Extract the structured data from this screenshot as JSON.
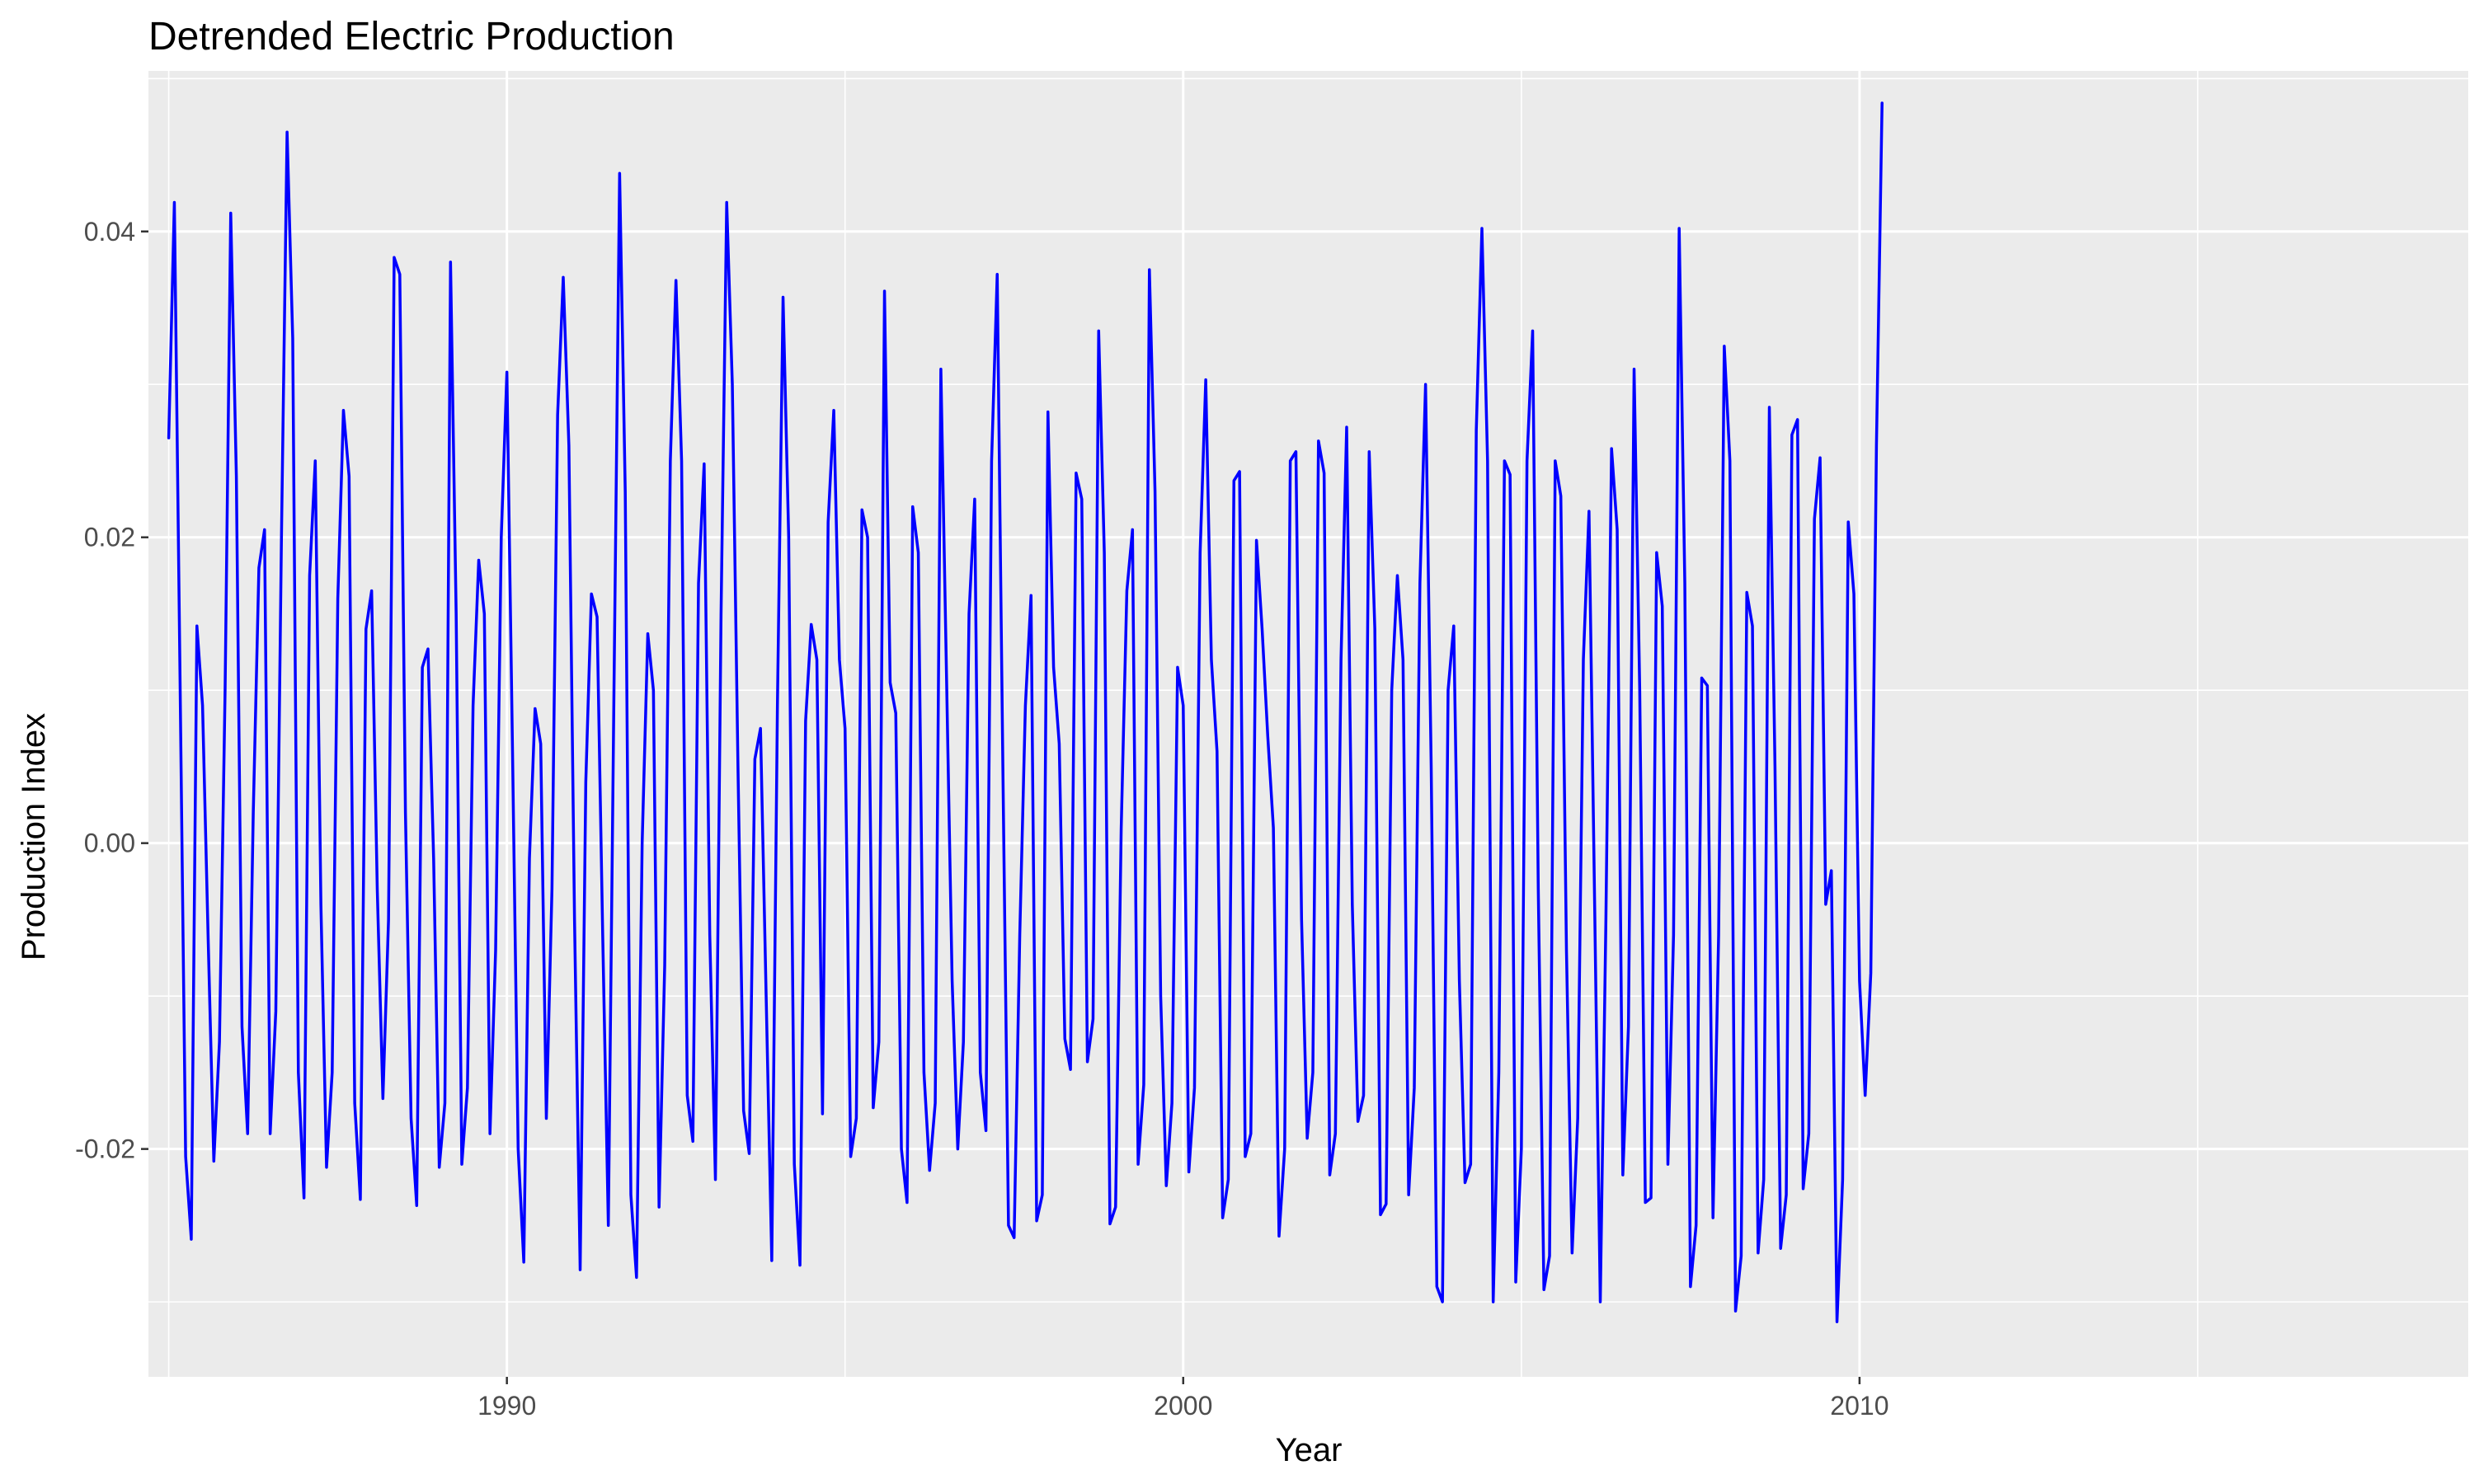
{
  "chart_data": {
    "type": "line",
    "title": "Detrended Electric Production",
    "xlabel": "Year",
    "ylabel": "Production Index",
    "xlim": [
      1984.7,
      2019.0
    ],
    "ylim": [
      -0.0349,
      0.0505
    ],
    "x_ticks": [
      1990,
      2000,
      2010
    ],
    "x_tick_labels": [
      "1990",
      "2000",
      "2010"
    ],
    "y_ticks": [
      -0.02,
      0.0,
      0.02,
      0.04
    ],
    "y_tick_labels": [
      "-0.02",
      "0.00",
      "0.02",
      "0.04"
    ],
    "grid": true,
    "legend": "none",
    "colors": {
      "line": "#0000ff",
      "panel": "#ebebeb",
      "grid": "#ffffff",
      "tick_text": "#4d4d4d"
    },
    "series": [
      {
        "x_start": 1985.0,
        "step": 0.083333,
        "values": [
          0.0265,
          0.0419,
          0.011,
          -0.0205,
          -0.0259,
          0.0142,
          0.009,
          -0.0063,
          -0.0208,
          -0.013,
          0.01,
          0.0412,
          0.024,
          -0.012,
          -0.019,
          0.002,
          0.018,
          0.0205,
          -0.019,
          -0.011,
          0.02,
          0.0465,
          0.033,
          -0.015,
          -0.0232,
          0.0175,
          0.025,
          -0.004,
          -0.0212,
          -0.015,
          0.016,
          0.0283,
          0.024,
          -0.017,
          -0.0233,
          0.014,
          0.0165,
          -0.003,
          -0.0167,
          -0.005,
          0.0383,
          0.0372,
          0.002,
          -0.018,
          -0.0237,
          0.0115,
          0.0127,
          -0.001,
          -0.0212,
          -0.017,
          0.038,
          0.015,
          -0.021,
          -0.016,
          0.009,
          0.0185,
          0.015,
          -0.019,
          -0.007,
          0.02,
          0.0308,
          0.006,
          -0.02,
          -0.0274,
          -0.001,
          0.0088,
          0.0065,
          -0.018,
          -0.003,
          0.028,
          0.037,
          0.026,
          -0.005,
          -0.0279,
          0.004,
          0.0163,
          0.0148,
          -0.006,
          -0.025,
          0.01,
          0.0438,
          0.023,
          -0.023,
          -0.0284,
          0.0,
          0.0137,
          0.01,
          -0.0238,
          -0.008,
          0.025,
          0.0368,
          0.025,
          -0.0165,
          -0.0195,
          0.017,
          0.0248,
          -0.006,
          -0.022,
          0.015,
          0.0419,
          0.03,
          0.005,
          -0.0175,
          -0.0203,
          0.0055,
          0.0075,
          -0.01,
          -0.0273,
          0.009,
          0.0357,
          0.02,
          -0.021,
          -0.0276,
          0.008,
          0.0143,
          0.012,
          -0.0177,
          0.021,
          0.0283,
          0.012,
          0.0075,
          -0.0205,
          -0.018,
          0.0218,
          0.02,
          -0.0173,
          -0.013,
          0.0361,
          0.0105,
          0.0085,
          -0.02,
          -0.0235,
          0.022,
          0.019,
          -0.015,
          -0.0214,
          -0.017,
          0.031,
          0.011,
          -0.009,
          -0.02,
          -0.013,
          0.015,
          0.0225,
          -0.015,
          -0.0188,
          0.025,
          0.0372,
          0.005,
          -0.025,
          -0.0258,
          -0.006,
          0.009,
          0.0162,
          -0.0247,
          -0.023,
          0.0282,
          0.0115,
          0.0065,
          -0.0128,
          -0.0148,
          0.0242,
          0.0225,
          -0.0143,
          -0.0115,
          0.0335,
          0.019,
          -0.0249,
          -0.0238,
          0.001,
          0.0165,
          0.0205,
          -0.021,
          -0.0158,
          0.0375,
          0.023,
          -0.01,
          -0.0224,
          -0.017,
          0.0115,
          0.009,
          -0.0215,
          -0.016,
          0.019,
          0.0303,
          0.012,
          0.006,
          -0.0245,
          -0.022,
          0.0237,
          0.0243,
          -0.0205,
          -0.019,
          0.0198,
          0.014,
          0.007,
          0.001,
          -0.0257,
          -0.02,
          0.025,
          0.0256,
          -0.005,
          -0.0193,
          -0.015,
          0.0263,
          0.0242,
          -0.0217,
          -0.019,
          0.012,
          0.0272,
          -0.004,
          -0.0182,
          -0.0165,
          0.0256,
          0.014,
          -0.0243,
          -0.0236,
          0.01,
          0.0175,
          0.012,
          -0.023,
          -0.016,
          0.017,
          0.03,
          0.005,
          -0.029,
          -0.03,
          0.01,
          0.0142,
          -0.009,
          -0.0222,
          -0.021,
          0.027,
          0.0402,
          0.025,
          -0.03,
          -0.015,
          0.025,
          0.0241,
          -0.0287,
          -0.02,
          0.025,
          0.0335,
          -0.003,
          -0.0292,
          -0.027,
          0.025,
          0.0227,
          -0.007,
          -0.0268,
          -0.018,
          0.012,
          0.0217,
          -0.004,
          -0.03,
          -0.005,
          0.0258,
          0.0205,
          -0.0217,
          -0.012,
          0.031,
          0.01,
          -0.0235,
          -0.0232,
          0.019,
          0.0155,
          -0.021,
          -0.006,
          0.0402,
          0.017,
          -0.029,
          -0.025,
          0.0108,
          0.0103,
          -0.0245,
          -0.006,
          0.0325,
          0.025,
          -0.0306,
          -0.027,
          0.0164,
          0.0142,
          -0.0268,
          -0.022,
          0.0285,
          0.005,
          -0.0265,
          -0.023,
          0.0267,
          0.0277,
          -0.0226,
          -0.019,
          0.0212,
          0.0252,
          -0.004,
          -0.0018,
          -0.0313,
          -0.022,
          0.021,
          0.0163,
          -0.009,
          -0.0165,
          -0.0085,
          0.026,
          0.0484
        ]
      }
    ]
  }
}
